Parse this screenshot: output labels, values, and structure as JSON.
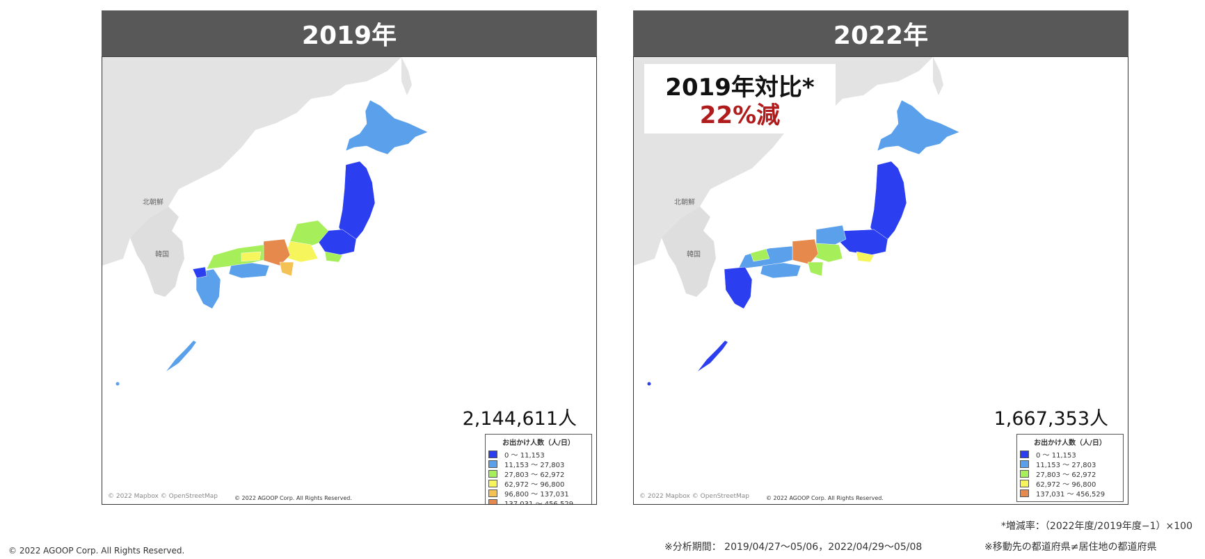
{
  "panels": [
    {
      "header": "2019年",
      "total": "2,144,611人",
      "legend_rows": 6
    },
    {
      "header": "2022年",
      "total": "1,667,353人",
      "legend_rows": 5,
      "callout": {
        "line1": "2019年対比*",
        "line2": "22%減"
      }
    }
  ],
  "map_labels": {
    "north_korea": "北朝鮮",
    "south_korea": "韓国"
  },
  "legend": {
    "title": "お出かけ人数（人/日）",
    "items": [
      {
        "label": "0 ～ 11,153",
        "color": "#2b3ff0"
      },
      {
        "label": "11,153 ～ 27,803",
        "color": "#5aa0ea"
      },
      {
        "label": "27,803 ～ 62,972",
        "color": "#a6ee5a"
      },
      {
        "label": "62,972 ～ 96,800",
        "color": "#f7f55c"
      },
      {
        "label": "96,800 ～ 137,031",
        "color": "#f4c155"
      },
      {
        "label": "137,031 ～ 456,529",
        "color": "#e58a4c"
      }
    ]
  },
  "credits": {
    "mapbox": "© 2022 Mapbox © OpenStreetMap",
    "agoop": "© 2022 AGOOP Corp. All Rights Reserved."
  },
  "footnotes": {
    "rate": "*増減率：（2022年度/2019年度−1）×100",
    "period": "※分析期間： 2019/04/27～05/06，2022/04/29～05/08",
    "note": "※移動先の都道府県≠居住地の都道府県"
  },
  "copyright": "© 2022 AGOOP Corp. All Rights Reserved."
}
